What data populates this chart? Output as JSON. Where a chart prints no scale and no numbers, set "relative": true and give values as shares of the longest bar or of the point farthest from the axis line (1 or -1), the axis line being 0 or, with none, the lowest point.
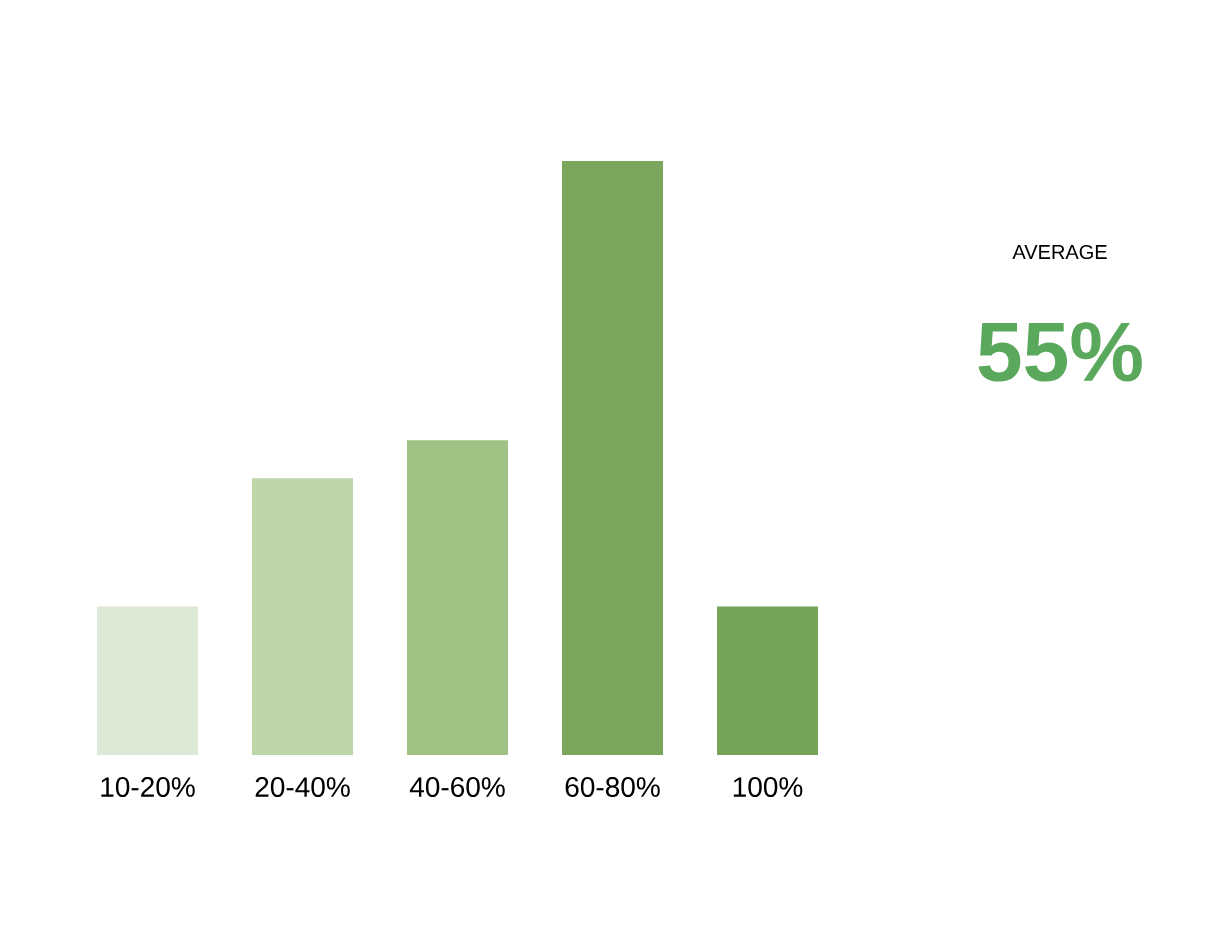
{
  "chart_data": {
    "type": "bar",
    "relative": true,
    "categories": [
      "10-20%",
      "20-40%",
      "40-60%",
      "60-80%",
      "100%"
    ],
    "values": [
      0.25,
      0.466,
      0.53,
      1,
      0.25
    ],
    "colors": [
      "#dde8d6",
      "#bfd6ab",
      "#a0c385",
      "#7ba75c",
      "#76a559"
    ],
    "annotations": [
      "AVERAGE",
      "55%"
    ]
  }
}
